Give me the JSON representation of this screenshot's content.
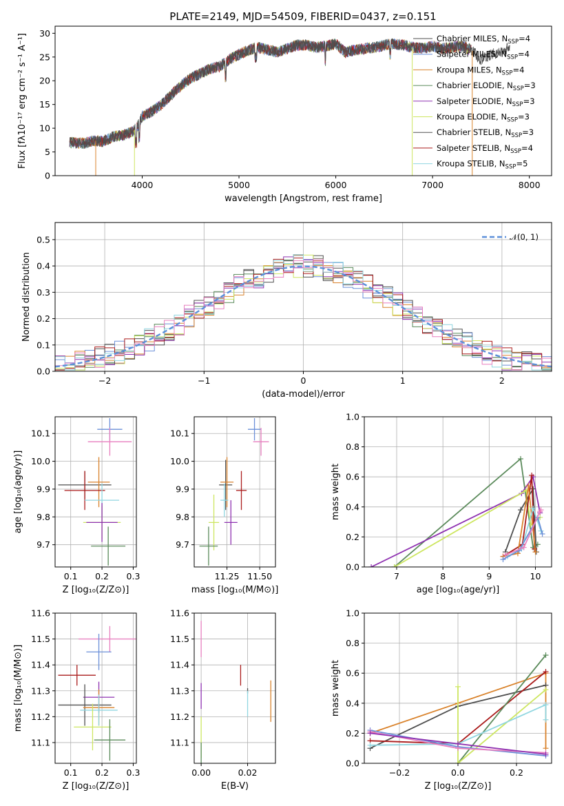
{
  "title": "PLATE=2149, MJD=54509, FIBERID=0437, z=0.151",
  "models": [
    {
      "name": "Chabrier MILES",
      "nssp": "4",
      "color": "#4d4d4d"
    },
    {
      "name": "Salpeter MILES",
      "nssp": "4",
      "color": "#6a8fd8"
    },
    {
      "name": "Kroupa MILES",
      "nssp": "4",
      "color": "#d9822b"
    },
    {
      "name": "Chabrier ELODIE",
      "nssp": "3",
      "color": "#5a8a5a"
    },
    {
      "name": "Salpeter ELODIE",
      "nssp": "3",
      "color": "#8e30b0"
    },
    {
      "name": "Kroupa ELODIE",
      "nssp": "3",
      "color": "#cde660"
    },
    {
      "name": "Chabrier STELIB",
      "nssp": "3",
      "color": "#505050"
    },
    {
      "name": "Salpeter STELIB",
      "nssp": "4",
      "color": "#aa1a1a"
    },
    {
      "name": "Kroupa STELIB",
      "nssp": "5",
      "color": "#8fd6e0"
    }
  ],
  "extra_colors": {
    "pink": "#e87fbf",
    "blue": "#6a8fd8"
  },
  "chart_data": [
    {
      "id": "spectrum",
      "type": "line",
      "xlabel": "wavelength [Angstrom, rest frame]",
      "ylabel": "Flux [fλ10⁻¹⁷ erg cm⁻² s⁻¹ A⁻¹]",
      "xlim": [
        3100,
        8230
      ],
      "ylim": [
        0,
        31.5
      ],
      "xticks": [
        "4000",
        "5000",
        "6000",
        "7000",
        "8000"
      ],
      "xtick_values": [
        4000,
        5000,
        6000,
        7000,
        8000
      ],
      "yticks": [
        "0",
        "5",
        "10",
        "15",
        "20",
        "25",
        "30"
      ],
      "ytick_values": [
        0,
        5,
        10,
        15,
        20,
        25,
        30
      ],
      "grid": false,
      "legend": "top-right",
      "continuum_x": [
        3250,
        3400,
        3500,
        3600,
        3700,
        3800,
        3900,
        3950,
        4000,
        4100,
        4200,
        4300,
        4400,
        4500,
        4600,
        4700,
        4800,
        4900,
        5000,
        5100,
        5200,
        5300,
        5400,
        5500,
        5600,
        5700,
        5800,
        5900,
        6000,
        6100,
        6200,
        6300,
        6400,
        6500,
        6600,
        6700,
        6800,
        6900,
        7000,
        7100,
        7200,
        7300,
        7400,
        7500,
        7600,
        7700,
        7800
      ],
      "continuum_y": [
        7,
        6.8,
        7.4,
        7.2,
        8.2,
        8.5,
        9.3,
        10.2,
        12.5,
        13.5,
        15,
        17,
        19,
        20.5,
        21.5,
        22.5,
        23,
        24.5,
        25.5,
        26.5,
        27,
        26.5,
        26,
        26.8,
        27.5,
        27.5,
        27,
        27.3,
        27.8,
        26,
        26.5,
        26.8,
        27,
        27.5,
        27.8,
        27.5,
        27,
        26.8,
        27.3,
        26.8,
        27,
        27.3,
        26.5,
        24.5,
        25.5,
        26,
        27.3
      ]
    },
    {
      "id": "residuals",
      "type": "histogram",
      "xlabel": "(data-model)/error",
      "ylabel": "Normed distribution",
      "xlim": [
        -2.5,
        2.5
      ],
      "ylim": [
        0,
        0.565
      ],
      "xticks": [
        "−2",
        "−1",
        "0",
        "1",
        "2"
      ],
      "xtick_values": [
        -2,
        -1,
        0,
        1,
        2
      ],
      "yticks": [
        "0.0",
        "0.1",
        "0.2",
        "0.3",
        "0.4",
        "0.5"
      ],
      "ytick_values": [
        0,
        0.1,
        0.2,
        0.3,
        0.4,
        0.5
      ],
      "grid": true,
      "bin_width": 0.1,
      "legend": "top-right",
      "reference": {
        "label": "𝒩(0, 1)",
        "mean": 0,
        "sigma": 1,
        "color": "#5b8fd9"
      }
    },
    {
      "id": "age_vs_Z",
      "type": "errorbar",
      "xlabel": "Z [log₁₀(Z/Z⊙)]",
      "ylabel": "age  [log₁₀(age/yr)]",
      "xlim": [
        0.05,
        0.31
      ],
      "ylim": [
        9.62,
        10.16
      ],
      "xticks": [
        "0.1",
        "0.2",
        "0.3"
      ],
      "xtick_values": [
        0.1,
        0.2,
        0.3
      ],
      "yticks": [
        "9.7",
        "9.8",
        "9.9",
        "10.0",
        "10.1"
      ],
      "ytick_values": [
        9.7,
        9.8,
        9.9,
        10.0,
        10.1
      ],
      "grid": true,
      "points": [
        {
          "x": 0.225,
          "y": 10.115,
          "xerr": 0.04,
          "yerr": 0.04,
          "color": "#6a8fd8"
        },
        {
          "x": 0.225,
          "y": 10.07,
          "xerr": 0.07,
          "yerr": 0.05,
          "color": "#e87fbf"
        },
        {
          "x": 0.145,
          "y": 9.915,
          "xerr": 0.085,
          "yerr": 0.05,
          "color": "#4d4d4d"
        },
        {
          "x": 0.19,
          "y": 9.925,
          "xerr": 0.035,
          "yerr": 0.09,
          "color": "#d9822b"
        },
        {
          "x": 0.145,
          "y": 9.895,
          "xerr": 0.065,
          "yerr": 0.07,
          "color": "#aa1a1a"
        },
        {
          "x": 0.2,
          "y": 9.86,
          "xerr": 0.055,
          "yerr": 0.06,
          "color": "#8fd6e0"
        },
        {
          "x": 0.2,
          "y": 9.78,
          "xerr": 0.06,
          "yerr": 0.06,
          "color": "#cde660"
        },
        {
          "x": 0.2,
          "y": 9.78,
          "xerr": 0.05,
          "yerr": 0.07,
          "color": "#8e30b0"
        },
        {
          "x": 0.22,
          "y": 9.695,
          "xerr": 0.055,
          "yerr": 0.07,
          "color": "#5a8a5a"
        }
      ]
    },
    {
      "id": "age_vs_mass",
      "type": "errorbar",
      "xlabel": "mass [log₁₀(M/M⊙)]",
      "ylabel": "",
      "xlim": [
        11.0,
        11.62
      ],
      "ylim": [
        9.62,
        10.16
      ],
      "xticks": [
        "11.25",
        "11.50"
      ],
      "xtick_values": [
        11.25,
        11.5
      ],
      "yticks": [
        "9.7",
        "9.8",
        "9.9",
        "10.0",
        "10.1"
      ],
      "ytick_values": [
        9.7,
        9.8,
        9.9,
        10.0,
        10.1
      ],
      "grid": true,
      "points": [
        {
          "x": 11.46,
          "y": 10.115,
          "xerr": 0.05,
          "yerr": 0.04,
          "color": "#6a8fd8"
        },
        {
          "x": 11.51,
          "y": 10.07,
          "xerr": 0.06,
          "yerr": 0.05,
          "color": "#e87fbf"
        },
        {
          "x": 11.24,
          "y": 9.915,
          "xerr": 0.05,
          "yerr": 0.09,
          "color": "#4d4d4d"
        },
        {
          "x": 11.25,
          "y": 9.925,
          "xerr": 0.05,
          "yerr": 0.09,
          "color": "#d9822b"
        },
        {
          "x": 11.36,
          "y": 9.895,
          "xerr": 0.04,
          "yerr": 0.07,
          "color": "#aa1a1a"
        },
        {
          "x": 11.23,
          "y": 9.86,
          "xerr": 0.03,
          "yerr": 0.06,
          "color": "#8fd6e0"
        },
        {
          "x": 11.15,
          "y": 9.78,
          "xerr": 0.04,
          "yerr": 0.1,
          "color": "#cde660"
        },
        {
          "x": 11.28,
          "y": 9.78,
          "xerr": 0.05,
          "yerr": 0.08,
          "color": "#8e30b0"
        },
        {
          "x": 11.11,
          "y": 9.695,
          "xerr": 0.07,
          "yerr": 0.07,
          "color": "#5a8a5a"
        }
      ]
    },
    {
      "id": "weight_vs_age",
      "type": "line",
      "xlabel": "age  [log₁₀(age/yr)]",
      "ylabel": "mass weight",
      "xlim": [
        6.3,
        10.35
      ],
      "ylim": [
        0,
        1
      ],
      "xticks": [
        "7",
        "8",
        "9",
        "10"
      ],
      "xtick_values": [
        7,
        8,
        9,
        10
      ],
      "yticks": [
        "0.0",
        "0.2",
        "0.4",
        "0.6",
        "0.8",
        "1.0"
      ],
      "ytick_values": [
        0,
        0.2,
        0.4,
        0.6,
        0.8,
        1.0
      ],
      "grid": true,
      "series": [
        {
          "color": "#5a8a5a",
          "x": [
            6.95,
            9.68,
            9.95,
            10.05
          ],
          "y": [
            0,
            0.72,
            0.13,
            0.15
          ]
        },
        {
          "color": "#8e30b0",
          "x": [
            6.45,
            9.7,
            9.95,
            10.1
          ],
          "y": [
            0,
            0.49,
            0.6,
            0.36
          ]
        },
        {
          "color": "#cde660",
          "x": [
            6.95,
            9.8,
            9.9,
            10.1
          ],
          "y": [
            0,
            0.51,
            0.28,
            0.33
          ]
        },
        {
          "color": "#4d4d4d",
          "x": [
            9.35,
            9.68,
            9.95,
            10.02
          ],
          "y": [
            0.1,
            0.38,
            0.52,
            0.1
          ]
        },
        {
          "color": "#aa1a1a",
          "x": [
            9.3,
            9.72,
            9.92,
            9.98
          ],
          "y": [
            0.07,
            0.15,
            0.61,
            0.12
          ]
        },
        {
          "color": "#d9822b",
          "x": [
            9.3,
            9.62,
            9.85,
            10.0
          ],
          "y": [
            0.07,
            0.09,
            0.54,
            0.1
          ]
        },
        {
          "color": "#8fd6e0",
          "x": [
            9.4,
            9.7,
            9.95,
            10.12
          ],
          "y": [
            0.07,
            0.12,
            0.39,
            0.24
          ]
        },
        {
          "color": "#6a8fd8",
          "x": [
            9.3,
            9.65,
            10.05,
            10.15
          ],
          "y": [
            0.05,
            0.11,
            0.33,
            0.22
          ]
        },
        {
          "color": "#e87fbf",
          "x": [
            9.35,
            9.75,
            10.1,
            10.12
          ],
          "y": [
            0.08,
            0.13,
            0.37,
            0.38
          ]
        }
      ]
    },
    {
      "id": "mass_vs_Z",
      "type": "errorbar",
      "xlabel": "Z [log₁₀(Z/Z⊙)]",
      "ylabel": "mass [log₁₀(M/M⊙)]",
      "xlim": [
        0.05,
        0.31
      ],
      "ylim": [
        11.02,
        11.6
      ],
      "xticks": [
        "0.1",
        "0.2",
        "0.3"
      ],
      "xtick_values": [
        0.1,
        0.2,
        0.3
      ],
      "yticks": [
        "11.1",
        "11.2",
        "11.3",
        "11.4",
        "11.5",
        "11.6"
      ],
      "ytick_values": [
        11.1,
        11.2,
        11.3,
        11.4,
        11.5,
        11.6
      ],
      "grid": true,
      "points": [
        {
          "x": 0.225,
          "y": 11.5,
          "xerr": 0.1,
          "yerr": 0.05,
          "color": "#e87fbf"
        },
        {
          "x": 0.19,
          "y": 11.45,
          "xerr": 0.04,
          "yerr": 0.07,
          "color": "#6a8fd8"
        },
        {
          "x": 0.12,
          "y": 11.36,
          "xerr": 0.06,
          "yerr": 0.04,
          "color": "#aa1a1a"
        },
        {
          "x": 0.19,
          "y": 11.275,
          "xerr": 0.05,
          "yerr": 0.06,
          "color": "#8e30b0"
        },
        {
          "x": 0.145,
          "y": 11.245,
          "xerr": 0.085,
          "yerr": 0.08,
          "color": "#4d4d4d"
        },
        {
          "x": 0.19,
          "y": 11.235,
          "xerr": 0.05,
          "yerr": 0.07,
          "color": "#d9822b"
        },
        {
          "x": 0.19,
          "y": 11.225,
          "xerr": 0.06,
          "yerr": 0.06,
          "color": "#8fd6e0"
        },
        {
          "x": 0.17,
          "y": 11.16,
          "xerr": 0.06,
          "yerr": 0.09,
          "color": "#cde660"
        },
        {
          "x": 0.225,
          "y": 11.11,
          "xerr": 0.05,
          "yerr": 0.08,
          "color": "#5a8a5a"
        }
      ]
    },
    {
      "id": "mass_vs_EBV",
      "type": "errorbar",
      "xlabel": "E(B-V)",
      "ylabel": "",
      "xlim": [
        -0.003,
        0.032
      ],
      "ylim": [
        11.02,
        11.6
      ],
      "xticks": [
        "0.00",
        "0.02"
      ],
      "xtick_values": [
        0,
        0.02
      ],
      "yticks": [
        "11.1",
        "11.2",
        "11.3",
        "11.4",
        "11.5",
        "11.6"
      ],
      "ytick_values": [
        11.1,
        11.2,
        11.3,
        11.4,
        11.5,
        11.6
      ],
      "grid": true,
      "points": [
        {
          "x": 0.0,
          "y": 11.5,
          "xerr": 0,
          "yerr": 0.07,
          "color": "#e87fbf"
        },
        {
          "x": 0.0,
          "y": 11.28,
          "xerr": 0,
          "yerr": 0.05,
          "color": "#8e30b0"
        },
        {
          "x": 0.0,
          "y": 11.12,
          "xerr": 0,
          "yerr": 0.08,
          "color": "#cde660"
        },
        {
          "x": 0.0,
          "y": 11.06,
          "xerr": 0,
          "yerr": 0.04,
          "color": "#5a8a5a"
        },
        {
          "x": 0.017,
          "y": 11.36,
          "xerr": 0,
          "yerr": 0.04,
          "color": "#aa1a1a"
        },
        {
          "x": 0.02,
          "y": 11.3,
          "xerr": 0,
          "yerr": 0.01,
          "color": "#4d4d4d"
        },
        {
          "x": 0.02,
          "y": 11.25,
          "xerr": 0,
          "yerr": 0.05,
          "color": "#8fd6e0"
        },
        {
          "x": 0.03,
          "y": 11.26,
          "xerr": 0,
          "yerr": 0.08,
          "color": "#d9822b"
        }
      ]
    },
    {
      "id": "weight_vs_Z",
      "type": "line",
      "xlabel": "Z [log₁₀(Z/Z⊙)]",
      "ylabel": "mass weight",
      "xlim": [
        -0.32,
        0.32
      ],
      "ylim": [
        0,
        1
      ],
      "xticks": [
        "−0.2",
        "0.0",
        "0.2"
      ],
      "xtick_values": [
        -0.2,
        0,
        0.2
      ],
      "yticks": [
        "0.0",
        "0.2",
        "0.4",
        "0.6",
        "0.8",
        "1.0"
      ],
      "ytick_values": [
        0,
        0.2,
        0.4,
        0.6,
        0.8,
        1.0
      ],
      "grid": true,
      "series": [
        {
          "color": "#d9822b",
          "x": [
            -0.3,
            0.0,
            0.3,
            0.3
          ],
          "y": [
            0.2,
            0.4,
            0.6,
            0.1
          ]
        },
        {
          "color": "#4d4d4d",
          "x": [
            -0.3,
            0.0,
            0.3
          ],
          "y": [
            0.1,
            0.38,
            0.52
          ]
        },
        {
          "color": "#aa1a1a",
          "x": [
            -0.3,
            0.0,
            0.3
          ],
          "y": [
            0.15,
            0.13,
            0.61
          ]
        },
        {
          "color": "#5a8a5a",
          "x": [
            0.0,
            0.3
          ],
          "y": [
            0.0,
            0.72
          ]
        },
        {
          "color": "#cde660",
          "x": [
            0.0,
            0.0,
            0.3
          ],
          "y": [
            0.51,
            0.0,
            0.49
          ]
        },
        {
          "color": "#8fd6e0",
          "x": [
            -0.3,
            0.0,
            0.3,
            0.3
          ],
          "y": [
            0.12,
            0.13,
            0.39,
            0.29
          ]
        },
        {
          "color": "#6a8fd8",
          "x": [
            -0.3,
            0.0,
            0.3
          ],
          "y": [
            0.22,
            0.11,
            0.05
          ]
        },
        {
          "color": "#e87fbf",
          "x": [
            -0.3,
            0.0,
            0.3
          ],
          "y": [
            0.21,
            0.1,
            0.07
          ]
        },
        {
          "color": "#8e30b0",
          "x": [
            -0.3,
            0.0,
            0.3
          ],
          "y": [
            0.2,
            0.13,
            0.06
          ]
        }
      ]
    }
  ]
}
